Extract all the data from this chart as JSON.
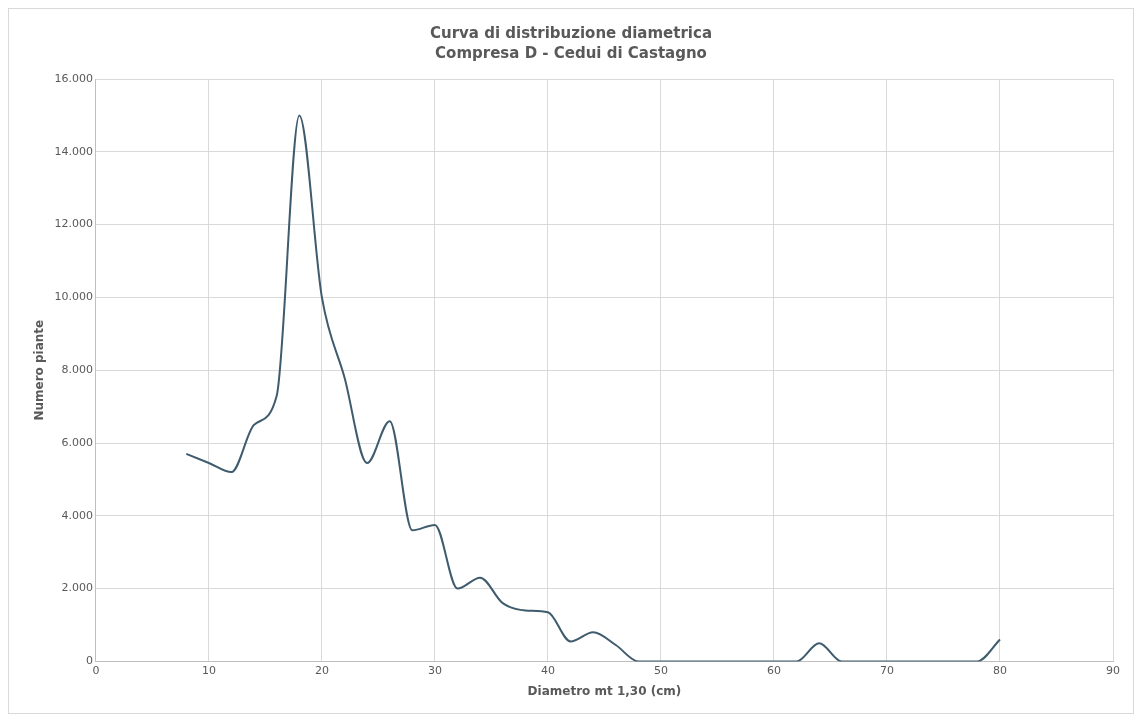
{
  "chart_data": {
    "type": "line",
    "title": "Curva di distribuzione diametrica",
    "subtitle": "Compresa D - Cedui di Castagno",
    "xlabel": "Diametro mt 1,30 (cm)",
    "ylabel": "Numero piante",
    "x": [
      8,
      10,
      12,
      14,
      16,
      18,
      20,
      22,
      24,
      26,
      28,
      30,
      32,
      34,
      36,
      38,
      40,
      42,
      44,
      46,
      48,
      50,
      52,
      54,
      56,
      58,
      60,
      62,
      64,
      66,
      68,
      70,
      72,
      74,
      76,
      78,
      80
    ],
    "series": [
      {
        "color": "#3f5b6e",
        "values": [
          5700,
          5450,
          5200,
          6500,
          7300,
          15000,
          10000,
          7800,
          5450,
          6600,
          3600,
          3750,
          2000,
          2300,
          1600,
          1400,
          1350,
          550,
          800,
          450,
          0,
          0,
          0,
          0,
          0,
          0,
          0,
          0,
          500,
          0,
          0,
          0,
          0,
          0,
          0,
          0,
          600
        ]
      }
    ],
    "xlim": [
      0,
      90
    ],
    "xticks": [
      0,
      10,
      20,
      30,
      40,
      50,
      60,
      70,
      80,
      90
    ],
    "ylim": [
      0,
      16000
    ],
    "yticks": [
      0,
      {
        "value": 2000,
        "label": "2.000"
      },
      {
        "value": 4000,
        "label": "4.000"
      },
      {
        "value": 6000,
        "label": "6.000"
      },
      {
        "value": 8000,
        "label": "8.000"
      },
      {
        "value": 10000,
        "label": "10.000"
      },
      {
        "value": 12000,
        "label": "12.000"
      },
      {
        "value": 14000,
        "label": "14.000"
      },
      {
        "value": 16000,
        "label": "16.000"
      }
    ],
    "grid": true,
    "legend": false,
    "marker": "none",
    "line_style": "solid"
  }
}
